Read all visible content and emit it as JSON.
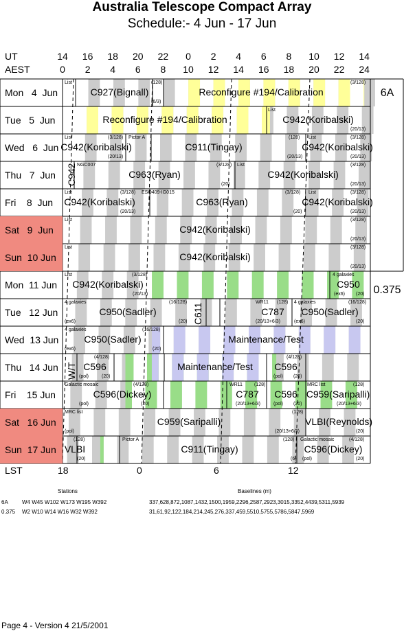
{
  "title": "Australia Telescope Compact Array",
  "subtitle": "Schedule:- 4  Jun - 17 Jun",
  "ut_label": "UT",
  "aest_label": "AEST",
  "ut_ticks": [
    "14",
    "16",
    "18",
    "20",
    "22",
    "0",
    "2",
    "4",
    "6",
    "8",
    "10",
    "12",
    "14"
  ],
  "aest_ticks": [
    "0",
    "2",
    "4",
    "6",
    "8",
    "10",
    "12",
    "14",
    "16",
    "18",
    "20",
    "22",
    "24"
  ],
  "colors": {
    "weekend": "#f08a80",
    "gray": "#cccccc",
    "yellow": "#ffff99",
    "green": "#99dd88",
    "lavender": "#c8c8f0"
  },
  "days": [
    {
      "label": "Mon   4  Jun",
      "weekend": false
    },
    {
      "label": "Tue   5  Jun",
      "weekend": false
    },
    {
      "label": "Wed   6  Jun",
      "weekend": false
    },
    {
      "label": "Thu   7  Jun",
      "weekend": false
    },
    {
      "label": "Fri    8  Jun",
      "weekend": false
    },
    {
      "label": "Sat   9  Jun",
      "weekend": true
    },
    {
      "label": "Sun  10 Jun",
      "weekend": true
    },
    {
      "label": "Mon  11 Jun",
      "weekend": false
    },
    {
      "label": "Tue   12 Jun",
      "weekend": false
    },
    {
      "label": "Wed  13 Jun",
      "weekend": false
    },
    {
      "label": "Thu   14 Jun",
      "weekend": false
    },
    {
      "label": "Fri    15 Jun",
      "weekend": false
    },
    {
      "label": "Sat   16 Jun",
      "weekend": true
    },
    {
      "label": "Sun  17 Jun",
      "weekend": true
    }
  ],
  "configs": [
    {
      "name": "6A"
    },
    {
      "name": "0.375"
    }
  ],
  "projects": [
    {
      "row": 0,
      "text": "C927(Bignall)"
    },
    {
      "row": 0,
      "text": "Reconfigure #194/Calibration"
    },
    {
      "row": 1,
      "text": "Reconfigure #194/Calibration"
    },
    {
      "row": 1,
      "text": "C942(Koribalski)"
    },
    {
      "row": 2,
      "text": "C942(Koribalski)"
    },
    {
      "row": 2,
      "text": "C911(Tingay)"
    },
    {
      "row": 2,
      "text": "C942(Koribalski)"
    },
    {
      "row": 3,
      "text": "C963(Ryan)"
    },
    {
      "row": 3,
      "text": "C942(Koribalski)"
    },
    {
      "row": 4,
      "text": "C942(Koribalski)"
    },
    {
      "row": 4,
      "text": "C963(Ryan)"
    },
    {
      "row": 4,
      "text": "C942(Koribalski)"
    },
    {
      "row": 5,
      "text": "C942(Koribalski)"
    },
    {
      "row": 6,
      "text": "C942(Koribalski)"
    },
    {
      "row": 7,
      "text": "C942(Koribalski)"
    },
    {
      "row": 7,
      "text": "C950"
    },
    {
      "row": 8,
      "text": "C950(Sadler)"
    },
    {
      "row": 8,
      "text": "C787"
    },
    {
      "row": 8,
      "text": "C950(Sadler)"
    },
    {
      "row": 9,
      "text": "C950(Sadler)"
    },
    {
      "row": 9,
      "text": "Maintenance/Test"
    },
    {
      "row": 10,
      "text": "C596"
    },
    {
      "row": 10,
      "text": "Maintenance/Test"
    },
    {
      "row": 10,
      "text": "C596"
    },
    {
      "row": 11,
      "text": "C596(Dickey)"
    },
    {
      "row": 11,
      "text": "C787"
    },
    {
      "row": 11,
      "text": "C596"
    },
    {
      "row": 11,
      "text": "C959(Saripalli)"
    },
    {
      "row": 12,
      "text": "C959(Saripalli)"
    },
    {
      "row": 12,
      "text": "VLBI(Reynolds)"
    },
    {
      "row": 13,
      "text": "VLBI"
    },
    {
      "row": 13,
      "text": "C911(Tingay)"
    },
    {
      "row": 13,
      "text": "C596(Dickey)"
    }
  ],
  "vertical_labels": [
    {
      "text": "C942"
    },
    {
      "text": "C611"
    },
    {
      "text": "W/T"
    }
  ],
  "small_labels": [
    {
      "text": "List"
    },
    {
      "text": "(128)"
    },
    {
      "text": "(6/3)"
    },
    {
      "text": "(3/128)"
    },
    {
      "text": "List"
    },
    {
      "text": "(20/13)"
    },
    {
      "text": "List"
    },
    {
      "text": "(3/128)"
    },
    {
      "text": "Pictor A"
    },
    {
      "text": "(20/13)"
    },
    {
      "text": "(128)"
    },
    {
      "text": "List"
    },
    {
      "text": "(3/128)"
    },
    {
      "text": "(20/13)"
    },
    {
      "text": "(20/13)"
    },
    {
      "text": "NGC007"
    },
    {
      "text": "(3/128)"
    },
    {
      "text": "List"
    },
    {
      "text": "(3/128)"
    },
    {
      "text": "(20)"
    },
    {
      "text": "(20/13)"
    },
    {
      "text": "List"
    },
    {
      "text": "(3/128)"
    },
    {
      "text": "ESO409-IG015"
    },
    {
      "text": "(3/128)"
    },
    {
      "text": "List"
    },
    {
      "text": "(3/128)"
    },
    {
      "text": "(20/13)"
    },
    {
      "text": "(20)"
    },
    {
      "text": "(20/13)"
    },
    {
      "text": "List"
    },
    {
      "text": "(3/128)"
    },
    {
      "text": "(20/13)"
    },
    {
      "text": "List"
    },
    {
      "text": "(3/128)"
    },
    {
      "text": "(20/13)"
    },
    {
      "text": "List"
    },
    {
      "text": "(3/128)"
    },
    {
      "text": "4 galaxies"
    },
    {
      "text": "(20/13)"
    },
    {
      "text": "(ex6)"
    },
    {
      "text": "(20)"
    },
    {
      "text": "4 galaxies"
    },
    {
      "text": "(16/128)"
    },
    {
      "text": "WR11"
    },
    {
      "text": "(128)"
    },
    {
      "text": "4 galaxies"
    },
    {
      "text": "(16/128)"
    },
    {
      "text": "(ex6)"
    },
    {
      "text": "(20)"
    },
    {
      "text": "(20/13+6/3)"
    },
    {
      "text": "(ex6)"
    },
    {
      "text": "(20)"
    },
    {
      "text": "4 galaxies"
    },
    {
      "text": "(16/128)"
    },
    {
      "text": "(ex6)"
    },
    {
      "text": "(20)"
    },
    {
      "text": "(4/128)"
    },
    {
      "text": "(4/128)"
    },
    {
      "text": "(pol)"
    },
    {
      "text": "(20)"
    },
    {
      "text": "(pol)"
    },
    {
      "text": "(20)"
    },
    {
      "text": "Galactic mosaic"
    },
    {
      "text": "(4/128)"
    },
    {
      "text": "WR11"
    },
    {
      "text": "(128)"
    },
    {
      "text": "MRC list"
    },
    {
      "text": "(128)"
    },
    {
      "text": "(pol)"
    },
    {
      "text": "(20)"
    },
    {
      "text": "(20/13+6/3)"
    },
    {
      "text": "(pol)"
    },
    {
      "text": "(20)"
    },
    {
      "text": "(20/13+6/3)"
    },
    {
      "text": "MRC list"
    },
    {
      "text": "(128)"
    },
    {
      "text": "(pol)"
    },
    {
      "text": "(20/13+6/3)"
    },
    {
      "text": "(20)"
    },
    {
      "text": "(128)"
    },
    {
      "text": "Pictor A"
    },
    {
      "text": "(128)"
    },
    {
      "text": "Galactic mosaic"
    },
    {
      "text": "(4/128)"
    },
    {
      "text": "(20)"
    },
    {
      "text": "(6)"
    },
    {
      "text": "(pol)"
    },
    {
      "text": "(20)"
    }
  ],
  "lst_label": "LST",
  "lst_ticks": [
    "18",
    "0",
    "6",
    "12"
  ],
  "footer": {
    "stations_header": "Stations",
    "baselines_header": "Baselines (m)",
    "rows": [
      {
        "config": "6A",
        "stations": "W4 W45 W102 W173 W195 W392",
        "baselines": "337,628,872,1087,1432,1500,1959,2296,2587,2923,3015,3352,4439,5311,5939"
      },
      {
        "config": "0.375",
        "stations": "W2 W10 W14 W16 W32 W392",
        "baselines": "31,61,92,122,184,214,245,276,337,459,5510,5755,5786,5847,5969"
      }
    ],
    "version": "Page 4 - Version 4  21/5/2001"
  }
}
